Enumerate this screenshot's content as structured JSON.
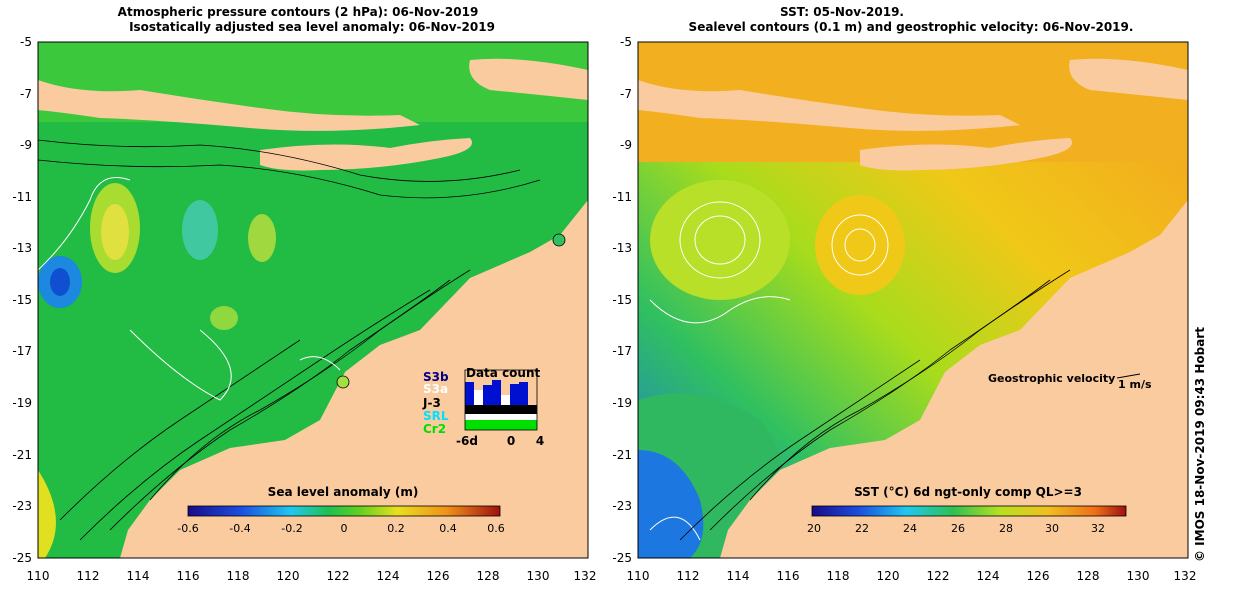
{
  "left_panel": {
    "title_line1": "Atmospheric pressure contours (2 hPa): 06-Nov-2019",
    "title_line2": "Isostatically adjusted sea level anomaly: 06-Nov-2019",
    "colorbar_title": "Sea level anomaly (m)",
    "colorbar_ticks": [
      "-0.6",
      "-0.4",
      "-0.2",
      "0",
      "0.2",
      "0.4",
      "0.6"
    ],
    "y_ticks": [
      "-5",
      "-7",
      "-9",
      "-11",
      "-13",
      "-15",
      "-17",
      "-19",
      "-21",
      "-23",
      "-25"
    ],
    "x_ticks": [
      "110",
      "112",
      "114",
      "116",
      "118",
      "120",
      "122",
      "124",
      "126",
      "128",
      "130",
      "132"
    ],
    "inset": {
      "title": "Data count",
      "labels": [
        {
          "text": "S3b",
          "color": "#000080"
        },
        {
          "text": "S3a",
          "color": "#ffffff"
        },
        {
          "text": "J-3",
          "color": "#000000"
        },
        {
          "text": "SRL",
          "color": "#00e0ff"
        },
        {
          "text": "Cr2",
          "color": "#00e000"
        }
      ],
      "axis_ticks": [
        "-6d",
        "0",
        "4"
      ]
    }
  },
  "right_panel": {
    "title_line1": "SST: 05-Nov-2019.",
    "title_line2": "Sealevel contours (0.1 m) and geostrophic velocity: 06-Nov-2019.",
    "velocity_legend_label": "Geostrophic velocity",
    "velocity_legend_unit": "1 m/s",
    "colorbar_title": "SST (°C) 6d ngt-only comp QL>=3",
    "colorbar_ticks": [
      "20",
      "22",
      "24",
      "26",
      "28",
      "30",
      "32"
    ],
    "y_ticks": [
      "-5",
      "-7",
      "-9",
      "-11",
      "-13",
      "-15",
      "-17",
      "-19",
      "-21",
      "-23",
      "-25"
    ],
    "x_ticks": [
      "110",
      "112",
      "114",
      "116",
      "118",
      "120",
      "122",
      "124",
      "126",
      "128",
      "130",
      "132"
    ]
  },
  "credit": "© IMOS 18-Nov-2019 09:43 Hobart",
  "colors": {
    "land": "#fbcba0",
    "sla_ocean": "#22bb44",
    "sst_warm": "#f4a820",
    "sst_mid": "#a8dc1c",
    "sst_cool": "#1c88e8"
  }
}
